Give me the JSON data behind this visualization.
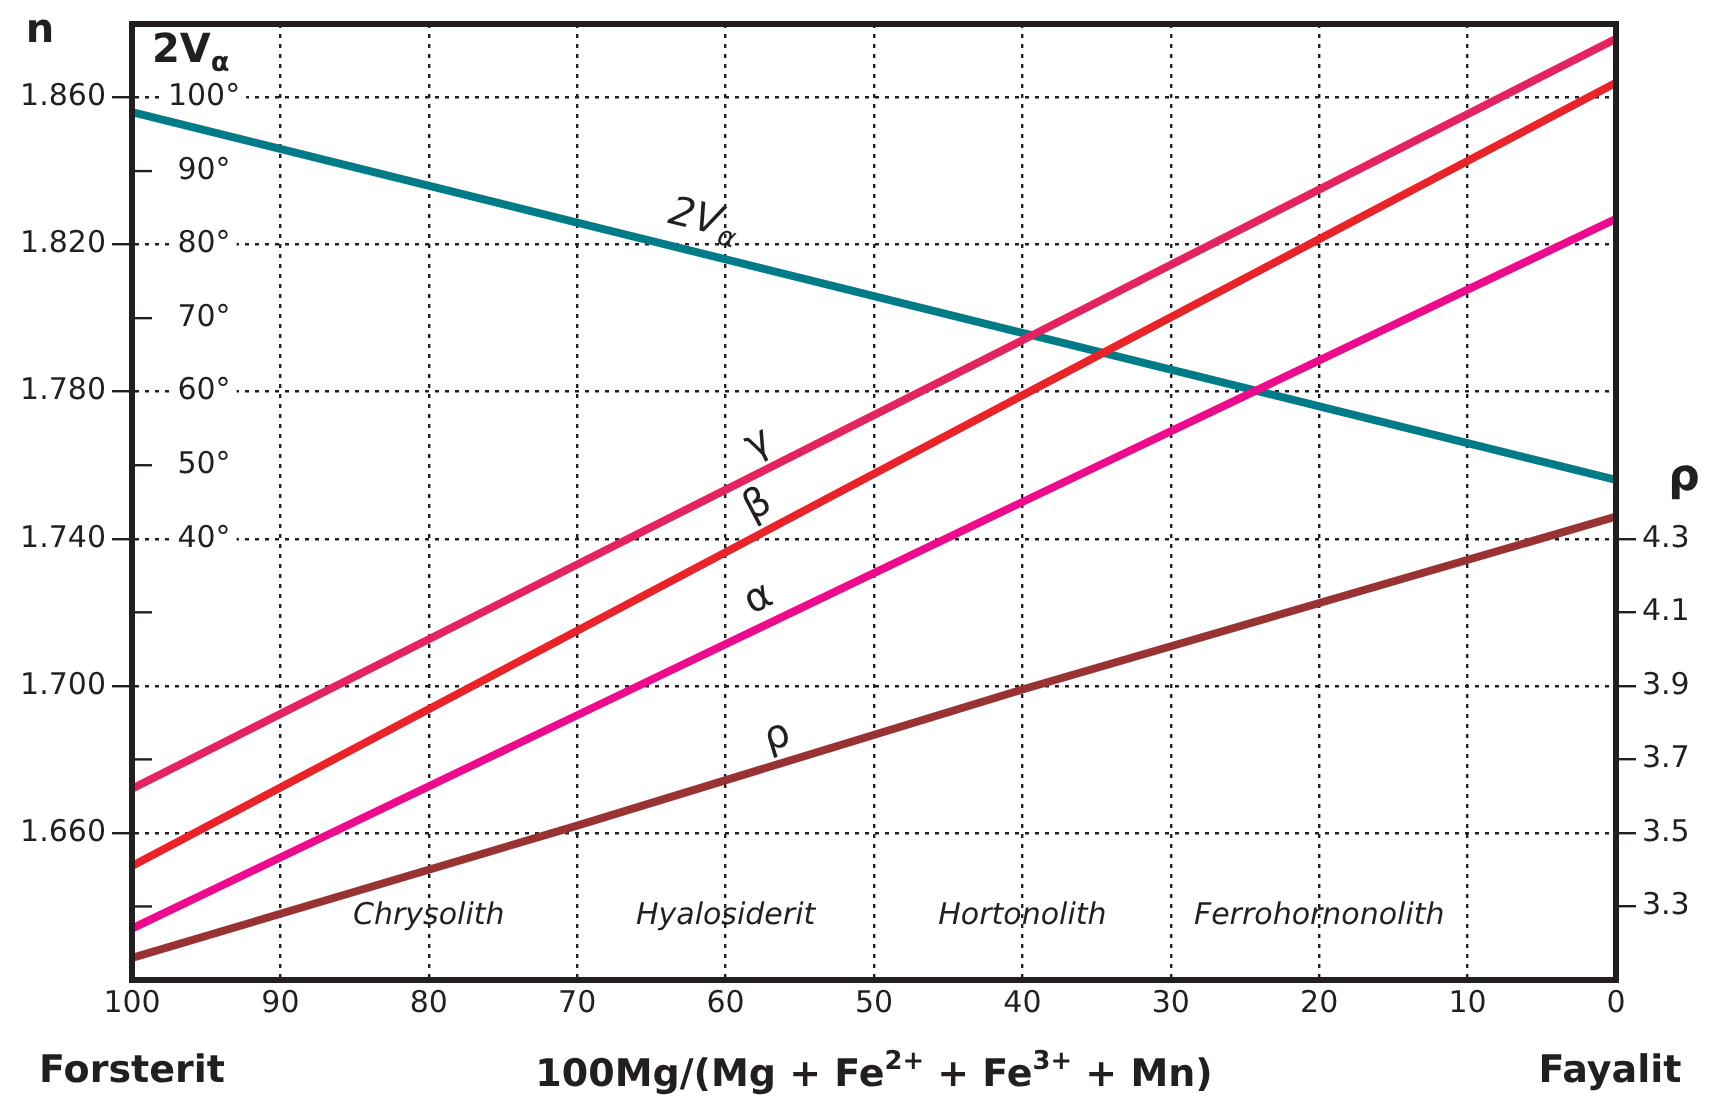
{
  "chart_data": {
    "type": "line",
    "ylabel": "n",
    "y2label": "ρ",
    "y3label": "2V$_{α}$",
    "xlabel": "100Mg/(Mg + Fe$^{2+}$ + Fe$^{3+}$ + Mn)",
    "x": [
      100,
      70,
      40,
      0
    ],
    "series": [
      {
        "name": "γ",
        "color": "#e3245f",
        "values": [
          1.672,
          1.733,
          1.794,
          1.876
        ]
      },
      {
        "name": "β",
        "color": "#e8242a",
        "values": [
          1.651,
          1.715,
          1.779,
          1.864
        ]
      },
      {
        "name": "α",
        "color": "#ec0b8c",
        "values": [
          1.634,
          1.692,
          1.75,
          1.827
        ]
      },
      {
        "name": "ρ",
        "color": "#993333",
        "axis": "y2",
        "values": [
          3.16,
          3.52,
          3.89,
          4.36
        ]
      },
      {
        "name": "2V$_{α}$",
        "color": "#007b87",
        "axis": "y3",
        "values": [
          98,
          83,
          68,
          48
        ]
      }
    ],
    "xlim": [
      100,
      0
    ],
    "xticks": [
      100,
      90,
      80,
      70,
      60,
      50,
      40,
      30,
      20,
      10,
      0
    ],
    "ylim": [
      1.62,
      1.88
    ],
    "yticks": [
      {
        "value": 1.64,
        "label": null
      },
      {
        "value": 1.66,
        "label": "1.660"
      },
      {
        "value": 1.68,
        "label": null
      },
      {
        "value": 1.7,
        "label": "1.700"
      },
      {
        "value": 1.72,
        "label": null
      },
      {
        "value": 1.74,
        "label": "1.740"
      },
      {
        "value": 1.76,
        "label": null
      },
      {
        "value": 1.78,
        "label": "1.780"
      },
      {
        "value": 1.8,
        "label": null
      },
      {
        "value": 1.82,
        "label": "1.820"
      },
      {
        "value": 1.84,
        "label": null
      },
      {
        "value": 1.86,
        "label": "1.860"
      }
    ],
    "y2lim": [
      3.1,
      5.7
    ],
    "y2ticks": [
      3.3,
      3.5,
      3.7,
      3.9,
      4.1,
      4.3
    ],
    "y3lim": [
      -20,
      110
    ],
    "y3ticks": [
      {
        "value": 40,
        "label": "40°"
      },
      {
        "value": 50,
        "label": "50°"
      },
      {
        "value": 60,
        "label": "60°"
      },
      {
        "value": 70,
        "label": "70°"
      },
      {
        "value": 80,
        "label": "80°"
      },
      {
        "value": 90,
        "label": "90°"
      },
      {
        "value": 100,
        "label": "100°"
      }
    ],
    "grid": true,
    "marker": "none",
    "line_style": "solid",
    "annotations": [
      "Forsterit",
      "Fayalit",
      "Chrysolith",
      "Hyalosiderit",
      "Hortonolith",
      "Ferrohornonolith"
    ]
  }
}
